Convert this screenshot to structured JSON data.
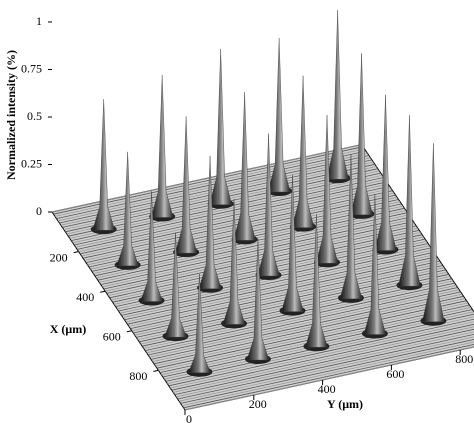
{
  "chart_data": {
    "type": "surface3d",
    "zlabel": "Normalized intensity (%)",
    "xlabel": "X (μm)",
    "ylabel": "Y (μm)",
    "xlim": [
      0,
      1000
    ],
    "ylim": [
      0,
      900
    ],
    "zlim": [
      0,
      1
    ],
    "xticks": [
      200,
      400,
      600,
      800
    ],
    "yticks": [
      0,
      200,
      400,
      600,
      800
    ],
    "zticks": [
      0,
      0.25,
      0.5,
      0.75,
      1
    ],
    "color": "#3a3a3a",
    "x": [
      130,
      130,
      130,
      130,
      130,
      310,
      310,
      310,
      310,
      310,
      490,
      490,
      490,
      490,
      490,
      670,
      670,
      670,
      670,
      670,
      850,
      850,
      850,
      850,
      850
    ],
    "y": [
      780,
      610,
      440,
      270,
      100,
      780,
      610,
      440,
      270,
      100,
      780,
      610,
      440,
      270,
      100,
      780,
      610,
      440,
      270,
      100,
      780,
      610,
      440,
      270,
      100
    ],
    "values": [
      0.89,
      0.81,
      0.82,
      0.75,
      0.69,
      0.85,
      0.8,
      0.78,
      0.72,
      0.6,
      0.82,
      0.78,
      0.75,
      0.7,
      0.58,
      0.9,
      0.76,
      0.72,
      0.66,
      0.55,
      0.94,
      0.74,
      0.7,
      0.64,
      0.52
    ]
  }
}
